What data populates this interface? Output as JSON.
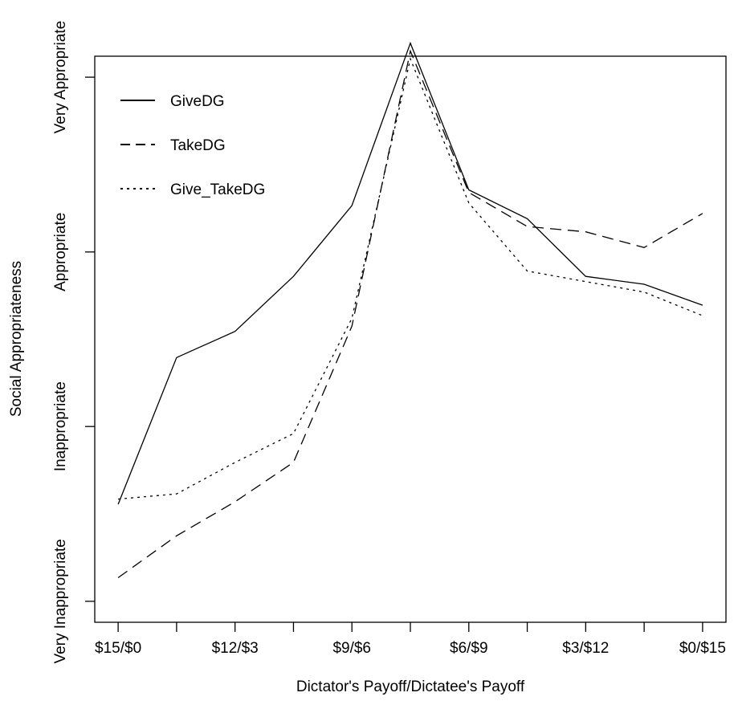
{
  "chart_data": {
    "type": "line",
    "xlabel": "Dictator's Payoff/Dictatee's Payoff",
    "ylabel": "Social Appropriateness",
    "x_tick_labels": [
      "$15/$0",
      "$12/$3",
      "$9/$6",
      "$6/$9",
      "$3/$12",
      "$0/$15"
    ],
    "x_tick_positions": [
      0,
      2,
      4,
      6,
      8,
      10
    ],
    "categories": [
      0,
      1,
      2,
      3,
      4,
      5,
      6,
      7,
      8,
      9,
      10
    ],
    "y_tick_labels": [
      "Very Inappropriate",
      "Inappropriate",
      "Appropriate",
      "Very Appropriate"
    ],
    "y_tick_values": [
      -1,
      -0.333,
      0.333,
      1
    ],
    "ylim": [
      -1.08,
      1.08
    ],
    "xlim": [
      -0.4,
      10.4
    ],
    "legend": {
      "position": "top-left"
    },
    "series": [
      {
        "name": "GiveDG",
        "style": "solid",
        "values": [
          -0.63,
          -0.07,
          0.03,
          0.24,
          0.51,
          1.13,
          0.57,
          0.46,
          0.24,
          0.21,
          0.13
        ]
      },
      {
        "name": "TakeDG",
        "style": "dashed",
        "values": [
          -0.91,
          -0.75,
          -0.62,
          -0.47,
          0.05,
          1.1,
          0.56,
          0.43,
          0.41,
          0.35,
          0.48
        ]
      },
      {
        "name": "Give_TakeDG",
        "style": "dotted",
        "values": [
          -0.61,
          -0.59,
          -0.47,
          -0.36,
          0.08,
          1.07,
          0.52,
          0.26,
          0.22,
          0.18,
          0.09
        ]
      }
    ]
  }
}
